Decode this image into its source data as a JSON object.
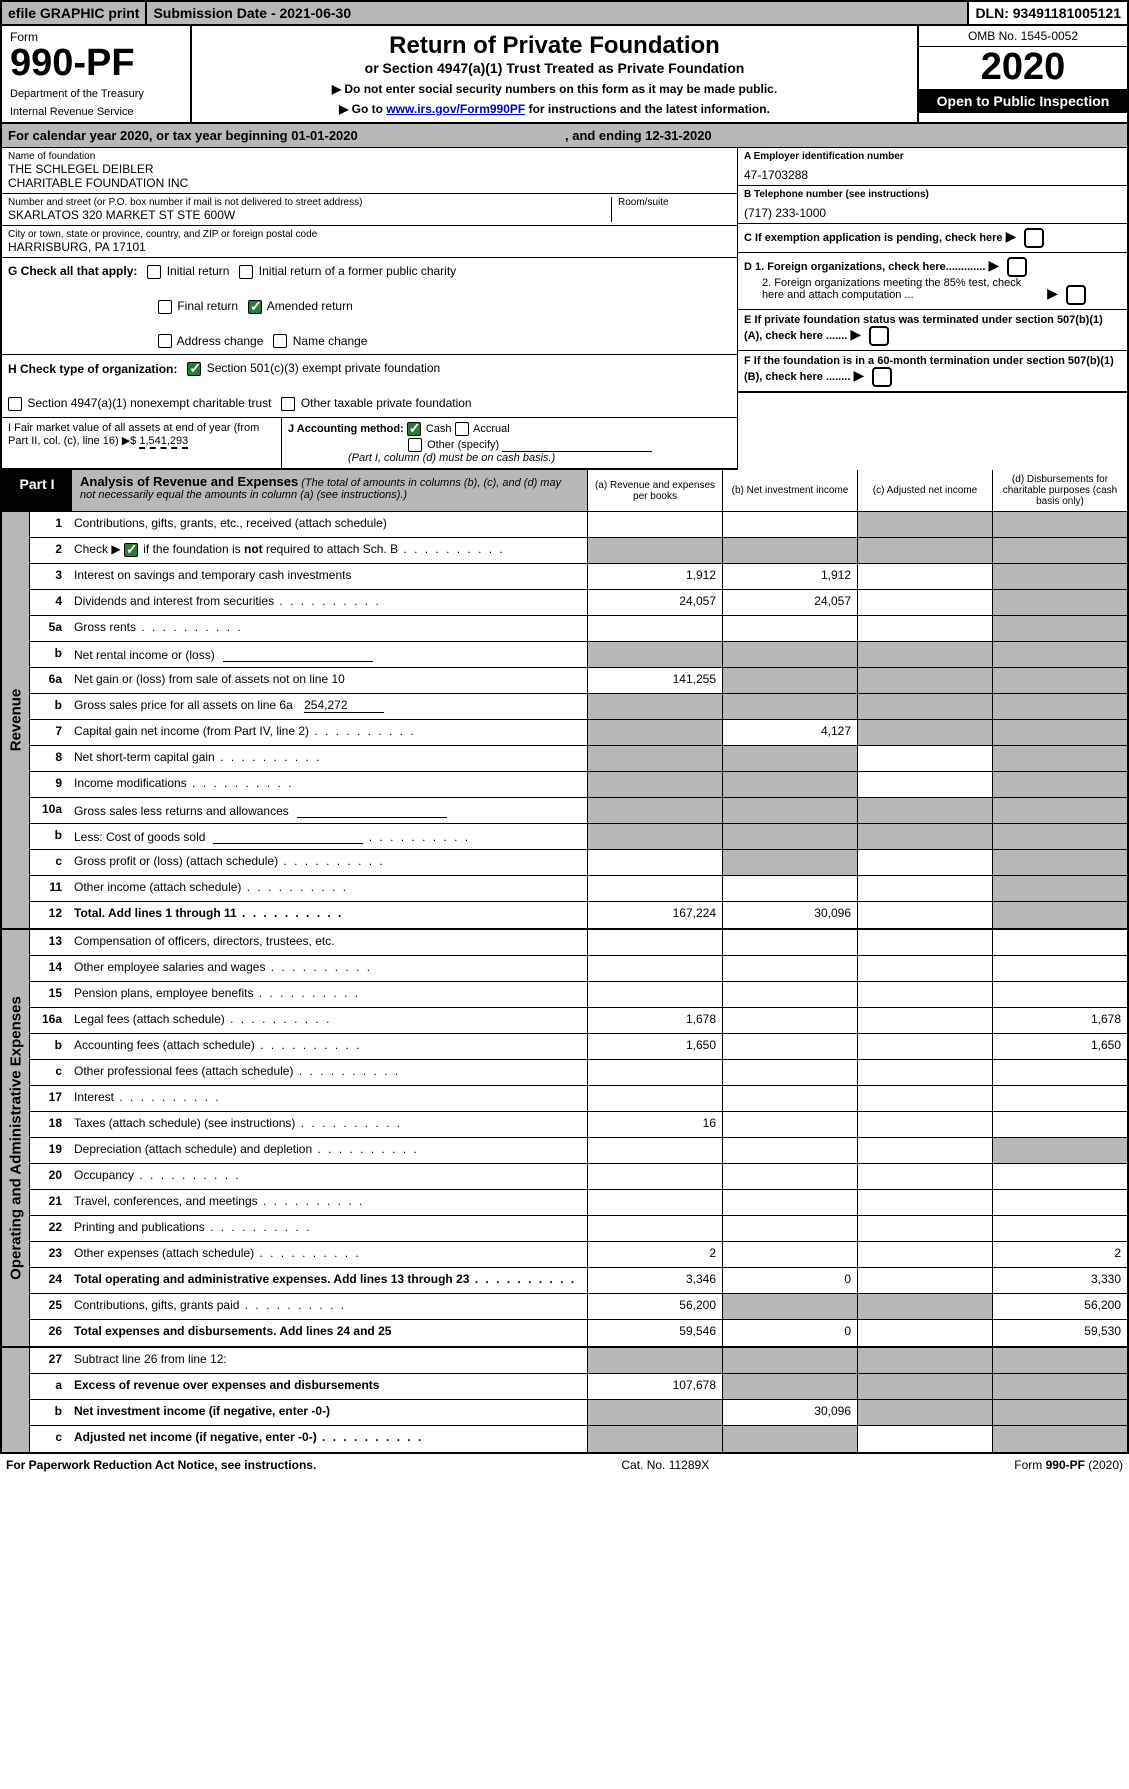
{
  "topbar": {
    "efile": "efile GRAPHIC print",
    "submission": "Submission Date - 2021-06-30",
    "dln": "DLN: 93491181005121"
  },
  "header": {
    "form_word": "Form",
    "form_number": "990-PF",
    "dept1": "Department of the Treasury",
    "dept2": "Internal Revenue Service",
    "title": "Return of Private Foundation",
    "subtitle": "or Section 4947(a)(1) Trust Treated as Private Foundation",
    "note1": "▶ Do not enter social security numbers on this form as it may be made public.",
    "note2_pre": "▶ Go to ",
    "note2_link": "www.irs.gov/Form990PF",
    "note2_post": " for instructions and the latest information.",
    "omb": "OMB No. 1545-0052",
    "year": "2020",
    "inspect": "Open to Public Inspection"
  },
  "calendar": {
    "text_pre": "For calendar year 2020, or tax year beginning ",
    "begin": "01-01-2020",
    "text_mid": " , and ending ",
    "end": "12-31-2020"
  },
  "entity": {
    "name_lbl": "Name of foundation",
    "name1": "THE SCHLEGEL DEIBLER",
    "name2": "CHARITABLE FOUNDATION INC",
    "addr_lbl": "Number and street (or P.O. box number if mail is not delivered to street address)",
    "room_lbl": "Room/suite",
    "addr": "SKARLATOS 320 MARKET ST STE 600W",
    "city_lbl": "City or town, state or province, country, and ZIP or foreign postal code",
    "city": "HARRISBURG, PA  17101",
    "ein_lbl": "A Employer identification number",
    "ein": "47-1703288",
    "phone_lbl": "B Telephone number (see instructions)",
    "phone": "(717) 233-1000",
    "c_text": "C If exemption application is pending, check here",
    "d1": "D 1. Foreign organizations, check here.............",
    "d2": "2. Foreign organizations meeting the 85% test, check here and attach computation ...",
    "e_text": "E  If private foundation status was terminated under section 507(b)(1)(A), check here .......",
    "f_text": "F  If the foundation is in a 60-month termination under section 507(b)(1)(B), check here ........"
  },
  "g": {
    "label": "G Check all that apply:",
    "opts": [
      "Initial return",
      "Initial return of a former public charity",
      "Final return",
      "Amended return",
      "Address change",
      "Name change"
    ],
    "checked": [
      false,
      false,
      false,
      true,
      false,
      false
    ]
  },
  "h": {
    "label": "H Check type of organization:",
    "opt1": "Section 501(c)(3) exempt private foundation",
    "opt2": "Section 4947(a)(1) nonexempt charitable trust",
    "opt3": "Other taxable private foundation"
  },
  "i": {
    "label": "I Fair market value of all assets at end of year (from Part II, col. (c), line 16) ▶$ ",
    "value": "1,541,293"
  },
  "j": {
    "label": "J Accounting method:",
    "cash": "Cash",
    "accrual": "Accrual",
    "other": "Other (specify)",
    "note": "(Part I, column (d) must be on cash basis.)"
  },
  "part1": {
    "tab": "Part I",
    "title": "Analysis of Revenue and Expenses",
    "note": "(The total of amounts in columns (b), (c), and (d) may not necessarily equal the amounts in column (a) (see instructions).)",
    "col_a": "(a)   Revenue and expenses per books",
    "col_b": "(b)  Net investment income",
    "col_c": "(c)  Adjusted net income",
    "col_d": "(d)  Disbursements for charitable purposes (cash basis only)"
  },
  "vlabels": {
    "rev": "Revenue",
    "exp": "Operating and Administrative Expenses"
  },
  "revenue_rows": [
    {
      "n": "1",
      "d": "Contributions, gifts, grants, etc., received (attach schedule)",
      "a": "",
      "b": "",
      "c": "grey",
      "dd": "grey"
    },
    {
      "n": "2",
      "d": "Check ▶ ☑ if the foundation is not required to attach Sch. B",
      "a": "grey",
      "b": "grey",
      "c": "grey",
      "dd": "grey",
      "dots": true,
      "checked": true
    },
    {
      "n": "3",
      "d": "Interest on savings and temporary cash investments",
      "a": "1,912",
      "b": "1,912",
      "c": "",
      "dd": "grey"
    },
    {
      "n": "4",
      "d": "Dividends and interest from securities",
      "a": "24,057",
      "b": "24,057",
      "c": "",
      "dd": "grey",
      "dots": true
    },
    {
      "n": "5a",
      "d": "Gross rents",
      "a": "",
      "b": "",
      "c": "",
      "dd": "grey",
      "dots": true
    },
    {
      "n": "b",
      "d": "Net rental income or (loss)",
      "a": "grey",
      "b": "grey",
      "c": "grey",
      "dd": "grey",
      "input": true
    },
    {
      "n": "6a",
      "d": "Net gain or (loss) from sale of assets not on line 10",
      "a": "141,255",
      "b": "grey",
      "c": "grey",
      "dd": "grey"
    },
    {
      "n": "b",
      "d": "Gross sales price for all assets on line 6a",
      "a": "grey",
      "b": "grey",
      "c": "grey",
      "dd": "grey",
      "inline": "254,272"
    },
    {
      "n": "7",
      "d": "Capital gain net income (from Part IV, line 2)",
      "a": "grey",
      "b": "4,127",
      "c": "grey",
      "dd": "grey",
      "dots": true
    },
    {
      "n": "8",
      "d": "Net short-term capital gain",
      "a": "grey",
      "b": "grey",
      "c": "",
      "dd": "grey",
      "dots": true
    },
    {
      "n": "9",
      "d": "Income modifications",
      "a": "grey",
      "b": "grey",
      "c": "",
      "dd": "grey",
      "dots": true
    },
    {
      "n": "10a",
      "d": "Gross sales less returns and allowances",
      "a": "grey",
      "b": "grey",
      "c": "grey",
      "dd": "grey",
      "input": true
    },
    {
      "n": "b",
      "d": "Less: Cost of goods sold",
      "a": "grey",
      "b": "grey",
      "c": "grey",
      "dd": "grey",
      "input": true,
      "dots": true
    },
    {
      "n": "c",
      "d": "Gross profit or (loss) (attach schedule)",
      "a": "",
      "b": "grey",
      "c": "",
      "dd": "grey",
      "dots": true
    },
    {
      "n": "11",
      "d": "Other income (attach schedule)",
      "a": "",
      "b": "",
      "c": "",
      "dd": "grey",
      "dots": true
    },
    {
      "n": "12",
      "d": "Total. Add lines 1 through 11",
      "a": "167,224",
      "b": "30,096",
      "c": "",
      "dd": "grey",
      "bold": true,
      "dots": true
    }
  ],
  "expense_rows": [
    {
      "n": "13",
      "d": "Compensation of officers, directors, trustees, etc.",
      "a": "",
      "b": "",
      "c": "",
      "dd": ""
    },
    {
      "n": "14",
      "d": "Other employee salaries and wages",
      "a": "",
      "b": "",
      "c": "",
      "dd": "",
      "dots": true
    },
    {
      "n": "15",
      "d": "Pension plans, employee benefits",
      "a": "",
      "b": "",
      "c": "",
      "dd": "",
      "dots": true
    },
    {
      "n": "16a",
      "d": "Legal fees (attach schedule)",
      "a": "1,678",
      "b": "",
      "c": "",
      "dd": "1,678",
      "dots": true
    },
    {
      "n": "b",
      "d": "Accounting fees (attach schedule)",
      "a": "1,650",
      "b": "",
      "c": "",
      "dd": "1,650",
      "dots": true
    },
    {
      "n": "c",
      "d": "Other professional fees (attach schedule)",
      "a": "",
      "b": "",
      "c": "",
      "dd": "",
      "dots": true
    },
    {
      "n": "17",
      "d": "Interest",
      "a": "",
      "b": "",
      "c": "",
      "dd": "",
      "dots": true
    },
    {
      "n": "18",
      "d": "Taxes (attach schedule) (see instructions)",
      "a": "16",
      "b": "",
      "c": "",
      "dd": "",
      "dots": true
    },
    {
      "n": "19",
      "d": "Depreciation (attach schedule) and depletion",
      "a": "",
      "b": "",
      "c": "",
      "dd": "grey",
      "dots": true
    },
    {
      "n": "20",
      "d": "Occupancy",
      "a": "",
      "b": "",
      "c": "",
      "dd": "",
      "dots": true
    },
    {
      "n": "21",
      "d": "Travel, conferences, and meetings",
      "a": "",
      "b": "",
      "c": "",
      "dd": "",
      "dots": true
    },
    {
      "n": "22",
      "d": "Printing and publications",
      "a": "",
      "b": "",
      "c": "",
      "dd": "",
      "dots": true
    },
    {
      "n": "23",
      "d": "Other expenses (attach schedule)",
      "a": "2",
      "b": "",
      "c": "",
      "dd": "2",
      "dots": true
    },
    {
      "n": "24",
      "d": "Total operating and administrative expenses. Add lines 13 through 23",
      "a": "3,346",
      "b": "0",
      "c": "",
      "dd": "3,330",
      "bold": true,
      "dots": true
    },
    {
      "n": "25",
      "d": "Contributions, gifts, grants paid",
      "a": "56,200",
      "b": "grey",
      "c": "grey",
      "dd": "56,200",
      "dots": true
    },
    {
      "n": "26",
      "d": "Total expenses and disbursements. Add lines 24 and 25",
      "a": "59,546",
      "b": "0",
      "c": "",
      "dd": "59,530",
      "bold": true
    }
  ],
  "net_rows": [
    {
      "n": "27",
      "d": "Subtract line 26 from line 12:",
      "a": "grey",
      "b": "grey",
      "c": "grey",
      "dd": "grey"
    },
    {
      "n": "a",
      "d": "Excess of revenue over expenses and disbursements",
      "a": "107,678",
      "b": "grey",
      "c": "grey",
      "dd": "grey",
      "bold": true
    },
    {
      "n": "b",
      "d": "Net investment income (if negative, enter -0-)",
      "a": "grey",
      "b": "30,096",
      "c": "grey",
      "dd": "grey",
      "bold": true
    },
    {
      "n": "c",
      "d": "Adjusted net income (if negative, enter -0-)",
      "a": "grey",
      "b": "grey",
      "c": "",
      "dd": "grey",
      "bold": true,
      "dots": true
    }
  ],
  "footer": {
    "left": "For Paperwork Reduction Act Notice, see instructions.",
    "mid": "Cat. No. 11289X",
    "right": "Form 990-PF (2020)"
  },
  "colors": {
    "grey": "#b8b8b8",
    "check_green": "#2a7a3a",
    "link": "#0000cc"
  }
}
